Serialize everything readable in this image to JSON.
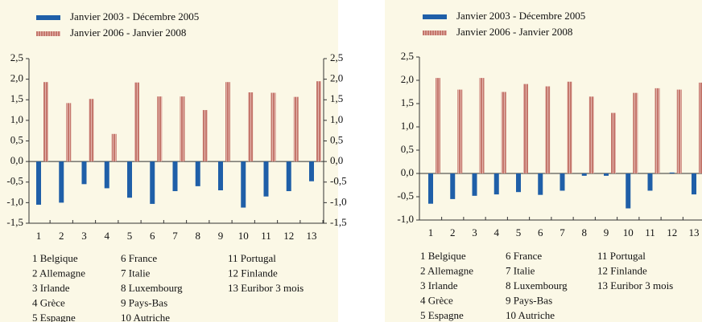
{
  "chart_data": [
    {
      "type": "bar",
      "series": [
        {
          "name": "Janvier 2003 - Décembre 2005",
          "color": "#1f5fa8",
          "values": [
            -1.05,
            -1.0,
            -0.55,
            -0.65,
            -0.88,
            -1.03,
            -0.72,
            -0.6,
            -0.7,
            -1.12,
            -0.85,
            -0.72,
            -0.48
          ]
        },
        {
          "name": "Janvier 2006 - Janvier 2008",
          "color": "#c4776c",
          "values": [
            1.93,
            1.42,
            1.52,
            0.67,
            1.92,
            1.58,
            1.58,
            1.25,
            1.93,
            1.68,
            1.67,
            1.57,
            1.95
          ]
        }
      ],
      "categories": [
        "1",
        "2",
        "3",
        "4",
        "5",
        "6",
        "7",
        "8",
        "9",
        "10",
        "11",
        "12",
        "13"
      ],
      "ylim": [
        -1.5,
        2.5
      ],
      "yticks": [
        {
          "value": 2.5,
          "label": "2,5"
        },
        {
          "value": 2.0,
          "label": "2,0"
        },
        {
          "value": 1.5,
          "label": "1,5"
        },
        {
          "value": 1.0,
          "label": "1,0"
        },
        {
          "value": 0.5,
          "label": "0,5"
        },
        {
          "value": 0.0,
          "label": "0,0"
        },
        {
          "value": -0.5,
          "label": "-0,5"
        },
        {
          "value": -1.0,
          "label": "-1,0"
        },
        {
          "value": -1.5,
          "label": "-1,5"
        }
      ],
      "y2lim": [
        -1.5,
        2.5
      ],
      "y2ticks": [
        {
          "value": 2.5,
          "label": "2,5"
        },
        {
          "value": 2.0,
          "label": "2,0"
        },
        {
          "value": 1.5,
          "label": "1,5"
        },
        {
          "value": 1.0,
          "label": "1,0"
        },
        {
          "value": 0.5,
          "label": "0,5"
        },
        {
          "value": 0.0,
          "label": "0,0"
        },
        {
          "value": -0.5,
          "label": "-0,5"
        },
        {
          "value": -1.0,
          "label": "-1,0"
        },
        {
          "value": -1.5,
          "label": "-1,5"
        }
      ],
      "key": [
        "1 Belgique",
        "2 Allemagne",
        "3 Irlande",
        "4 Grèce",
        "5 Espagne",
        "6 France",
        "7 Italie",
        "8 Luxembourg",
        "9 Pays-Bas",
        "10 Autriche",
        "11 Portugal",
        "12 Finlande",
        "13 Euribor 3 mois"
      ]
    },
    {
      "type": "bar",
      "series": [
        {
          "name": "Janvier 2003 - Décembre 2005",
          "color": "#1f5fa8",
          "values": [
            -0.65,
            -0.55,
            -0.48,
            -0.45,
            -0.4,
            -0.46,
            -0.37,
            -0.05,
            -0.05,
            -0.75,
            -0.37,
            0.02,
            -0.45
          ]
        },
        {
          "name": "Janvier 2006 - Janvier 2008",
          "color": "#c4776c",
          "values": [
            2.05,
            1.8,
            2.05,
            1.75,
            1.92,
            1.87,
            1.97,
            1.65,
            1.3,
            1.73,
            1.83,
            1.8,
            1.95
          ]
        }
      ],
      "categories": [
        "1",
        "2",
        "3",
        "4",
        "5",
        "6",
        "7",
        "8",
        "9",
        "10",
        "11",
        "12",
        "13"
      ],
      "ylim": [
        -1.0,
        2.5
      ],
      "yticks": [
        {
          "value": 2.5,
          "label": "2,5"
        },
        {
          "value": 2.0,
          "label": "2,0"
        },
        {
          "value": 1.5,
          "label": "1,5"
        },
        {
          "value": 1.0,
          "label": "1,0"
        },
        {
          "value": 0.5,
          "label": "0,5"
        },
        {
          "value": 0.0,
          "label": "0,0"
        },
        {
          "value": -0.5,
          "label": "-0,5"
        },
        {
          "value": -1.0,
          "label": "-1,0"
        }
      ],
      "key": [
        "1 Belgique",
        "2 Allemagne",
        "3 Irlande",
        "4 Grèce",
        "5 Espagne",
        "6 France",
        "7 Italie",
        "8 Luxembourg",
        "9 Pays-Bas",
        "10 Autriche",
        "11 Portugal",
        "12 Finlande",
        "13 Euribor 3 mois"
      ]
    }
  ]
}
